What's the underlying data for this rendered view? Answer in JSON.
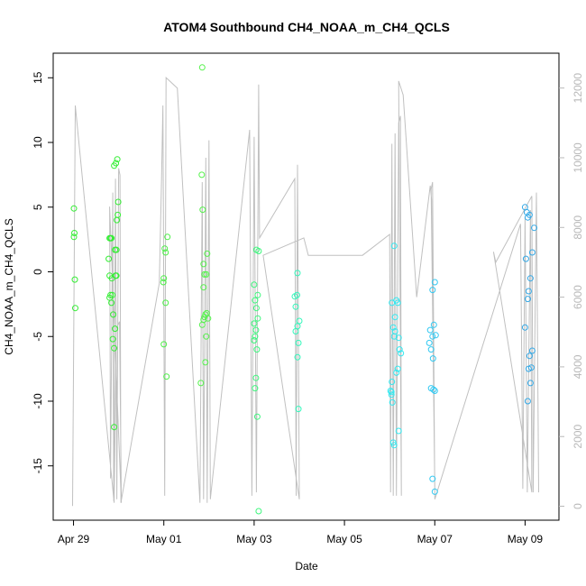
{
  "chart_data": {
    "type": "scatter",
    "title": "ATOM4 Southbound CH4_NOAA_m_CH4_QCLS",
    "xlabel": "Date",
    "ylabel": "CH4_NOAA_m_CH4_QCLS",
    "x_unit": "days",
    "x_range": [
      "Apr 29",
      "May 10 7:00"
    ],
    "ylim": [
      -19.2,
      16.9
    ],
    "y_ticks": [
      -15,
      -10,
      -5,
      0,
      5,
      10,
      15
    ],
    "x_ticks": [
      {
        "label": "Apr 29",
        "value": 0
      },
      {
        "label": "May 01",
        "value": 2
      },
      {
        "label": "May 03",
        "value": 4
      },
      {
        "label": "May 05",
        "value": 6
      },
      {
        "label": "May 07",
        "value": 8
      },
      {
        "label": "May 09",
        "value": 10
      }
    ],
    "right_axis": {
      "ylim": [
        -400,
        13000
      ],
      "ticks": [
        0,
        2000,
        4000,
        6000,
        8000,
        10000,
        12000
      ],
      "color": "#b8b8b8"
    },
    "altitude_line_color": "#c0c0c0",
    "point_colors_by_day": [
      "#33ee33",
      "#4cf047",
      "#55f24c",
      "#3df77d",
      "#33f7bb",
      "#33e8f0",
      "#33c9f2",
      "#33a8e6"
    ],
    "altitude_trace": [
      [
        -0.02,
        5
      ],
      [
        0.04,
        11500
      ],
      [
        0.9,
        100
      ],
      [
        0.95,
        5100
      ],
      [
        1.02,
        5300
      ],
      [
        1.06,
        100
      ],
      [
        0.8,
        8600
      ],
      [
        0.82,
        800
      ],
      [
        0.87,
        9000
      ],
      [
        0.89,
        150
      ],
      [
        0.93,
        9400
      ],
      [
        0.96,
        200
      ],
      [
        1.0,
        9700
      ],
      [
        1.03,
        9500
      ],
      [
        1.05,
        100
      ],
      [
        1.9,
        6400
      ],
      [
        1.95,
        9400
      ],
      [
        1.98,
        11500
      ],
      [
        2.02,
        300
      ],
      [
        2.05,
        12300
      ],
      [
        2.3,
        12000
      ],
      [
        2.8,
        100
      ],
      [
        2.85,
        9300
      ],
      [
        2.88,
        200
      ],
      [
        2.93,
        10000
      ],
      [
        2.96,
        100
      ],
      [
        3.0,
        10500
      ],
      [
        3.03,
        200
      ],
      [
        3.9,
        10800
      ],
      [
        3.95,
        300
      ],
      [
        4.0,
        10600
      ],
      [
        4.05,
        400
      ],
      [
        4.1,
        12100
      ],
      [
        4.12,
        7700
      ],
      [
        4.9,
        9400
      ],
      [
        4.93,
        300
      ],
      [
        4.96,
        9800
      ],
      [
        5.0,
        200
      ],
      [
        4.2,
        7200
      ],
      [
        5.1,
        7700
      ],
      [
        5.2,
        7200
      ],
      [
        5.5,
        7200
      ],
      [
        6.4,
        7200
      ],
      [
        7.0,
        7800
      ],
      [
        7.02,
        400
      ],
      [
        7.05,
        10400
      ],
      [
        7.08,
        300
      ],
      [
        7.12,
        10700
      ],
      [
        7.15,
        300
      ],
      [
        7.2,
        11000
      ],
      [
        7.24,
        11200
      ],
      [
        7.26,
        300
      ],
      [
        7.2,
        12200
      ],
      [
        7.3,
        11800
      ],
      [
        7.6,
        6000
      ],
      [
        7.9,
        9200
      ],
      [
        7.93,
        8800
      ],
      [
        8.0,
        500
      ],
      [
        7.92,
        9100
      ],
      [
        7.95,
        9300
      ],
      [
        8.0,
        200
      ],
      [
        9.9,
        8100
      ],
      [
        9.95,
        500
      ],
      [
        10.0,
        8300
      ],
      [
        10.05,
        400
      ],
      [
        10.12,
        8500
      ],
      [
        10.15,
        400
      ],
      [
        9.3,
        7300
      ],
      [
        9.35,
        7000
      ],
      [
        10.15,
        8900
      ],
      [
        10.18,
        400
      ],
      [
        10.25,
        9000
      ],
      [
        10.3,
        400
      ]
    ],
    "series": [
      {
        "name": "",
        "day": 0,
        "points": [
          [
            0.01,
            4.9
          ],
          [
            0.02,
            3.0
          ],
          [
            0.01,
            2.7
          ],
          [
            0.03,
            -0.6
          ],
          [
            0.04,
            -2.8
          ],
          [
            0.78,
            1.0
          ],
          [
            0.8,
            2.6
          ],
          [
            0.82,
            2.6
          ],
          [
            0.84,
            2.6
          ],
          [
            0.8,
            -0.3
          ],
          [
            0.85,
            -0.5
          ],
          [
            0.82,
            -1.8
          ],
          [
            0.8,
            -2.0
          ],
          [
            0.86,
            -1.8
          ],
          [
            0.84,
            -2.4
          ],
          [
            0.88,
            -3.3
          ],
          [
            0.87,
            -5.2
          ],
          [
            0.9,
            -5.9
          ],
          [
            0.92,
            -4.4
          ],
          [
            0.9,
            -12.0
          ],
          [
            0.93,
            -0.3
          ],
          [
            0.95,
            -0.3
          ],
          [
            0.92,
            1.7
          ],
          [
            0.9,
            8.2
          ],
          [
            0.94,
            8.4
          ],
          [
            0.97,
            8.7
          ],
          [
            0.96,
            4.0
          ],
          [
            0.98,
            4.4
          ],
          [
            0.99,
            5.4
          ],
          [
            0.95,
            1.7
          ]
        ]
      },
      {
        "name": "",
        "day": 1,
        "points": [
          [
            2.02,
            1.8
          ],
          [
            2.04,
            1.5
          ],
          [
            2.08,
            2.7
          ],
          [
            2.0,
            -0.5
          ],
          [
            1.99,
            -0.8
          ],
          [
            2.04,
            -2.4
          ],
          [
            2.0,
            -5.6
          ],
          [
            2.06,
            -8.1
          ]
        ]
      },
      {
        "name": "",
        "day": 2,
        "points": [
          [
            2.85,
            15.8
          ],
          [
            2.84,
            7.5
          ],
          [
            2.86,
            4.8
          ],
          [
            2.88,
            0.6
          ],
          [
            2.9,
            -0.2
          ],
          [
            2.94,
            -0.2
          ],
          [
            2.96,
            1.4
          ],
          [
            2.88,
            -1.2
          ],
          [
            2.95,
            -3.2
          ],
          [
            2.92,
            -3.3
          ],
          [
            2.9,
            -3.5
          ],
          [
            2.88,
            -3.7
          ],
          [
            2.98,
            -3.6
          ],
          [
            2.85,
            -4.1
          ],
          [
            2.94,
            -5.0
          ],
          [
            2.92,
            -7.0
          ],
          [
            2.82,
            -8.6
          ]
        ]
      },
      {
        "name": "",
        "day": 3,
        "points": [
          [
            4.05,
            1.7
          ],
          [
            4.1,
            1.6
          ],
          [
            4.0,
            -1.0
          ],
          [
            4.08,
            -1.8
          ],
          [
            4.02,
            -2.2
          ],
          [
            4.05,
            -2.8
          ],
          [
            4.08,
            -3.6
          ],
          [
            4.0,
            -4.0
          ],
          [
            4.04,
            -4.5
          ],
          [
            4.02,
            -5.0
          ],
          [
            4.0,
            -5.3
          ],
          [
            4.06,
            -6.0
          ],
          [
            4.04,
            -8.2
          ],
          [
            4.02,
            -9.0
          ],
          [
            4.07,
            -11.2
          ],
          [
            4.1,
            -18.5
          ]
        ]
      },
      {
        "name": "",
        "day": 4,
        "points": [
          [
            4.96,
            -0.1
          ],
          [
            4.9,
            -1.9
          ],
          [
            4.95,
            -1.8
          ],
          [
            4.92,
            -2.7
          ],
          [
            5.0,
            -3.8
          ],
          [
            4.96,
            -4.2
          ],
          [
            4.92,
            -4.6
          ],
          [
            4.98,
            -5.5
          ],
          [
            4.96,
            -6.6
          ],
          [
            4.98,
            -10.6
          ]
        ]
      },
      {
        "name": "",
        "day": 5,
        "points": [
          [
            7.1,
            2.0
          ],
          [
            7.05,
            -2.4
          ],
          [
            7.15,
            -2.2
          ],
          [
            7.18,
            -2.4
          ],
          [
            7.12,
            -3.5
          ],
          [
            7.08,
            -4.3
          ],
          [
            7.12,
            -4.6
          ],
          [
            7.1,
            -5.0
          ],
          [
            7.2,
            -5.1
          ],
          [
            7.22,
            -6.0
          ],
          [
            7.25,
            -6.3
          ],
          [
            7.18,
            -7.5
          ],
          [
            7.15,
            -7.8
          ],
          [
            7.05,
            -8.5
          ],
          [
            7.02,
            -9.2
          ],
          [
            7.04,
            -9.5
          ],
          [
            7.06,
            -10.1
          ],
          [
            7.2,
            -12.3
          ],
          [
            7.08,
            -13.2
          ],
          [
            7.1,
            -13.4
          ],
          [
            7.04,
            -9.3
          ]
        ]
      },
      {
        "name": "",
        "day": 6,
        "points": [
          [
            7.95,
            -1.4
          ],
          [
            8.0,
            -0.8
          ],
          [
            7.98,
            -4.1
          ],
          [
            7.9,
            -4.5
          ],
          [
            7.95,
            -5.0
          ],
          [
            8.02,
            -4.9
          ],
          [
            7.88,
            -5.5
          ],
          [
            7.92,
            -6.0
          ],
          [
            7.96,
            -6.7
          ],
          [
            7.92,
            -9.0
          ],
          [
            7.97,
            -9.1
          ],
          [
            8.0,
            -9.2
          ],
          [
            7.95,
            -16.0
          ],
          [
            8.0,
            -17.0
          ]
        ]
      },
      {
        "name": "",
        "day": 7,
        "points": [
          [
            10.0,
            5.0
          ],
          [
            10.04,
            4.6
          ],
          [
            10.1,
            4.4
          ],
          [
            10.06,
            4.2
          ],
          [
            10.2,
            3.4
          ],
          [
            10.02,
            1.0
          ],
          [
            10.16,
            1.5
          ],
          [
            10.12,
            -0.5
          ],
          [
            10.08,
            -1.5
          ],
          [
            10.06,
            -2.1
          ],
          [
            10.0,
            -4.3
          ],
          [
            10.16,
            -6.1
          ],
          [
            10.1,
            -6.5
          ],
          [
            10.14,
            -7.4
          ],
          [
            10.08,
            -7.5
          ],
          [
            10.12,
            -8.6
          ],
          [
            10.06,
            -10.0
          ]
        ]
      }
    ]
  }
}
